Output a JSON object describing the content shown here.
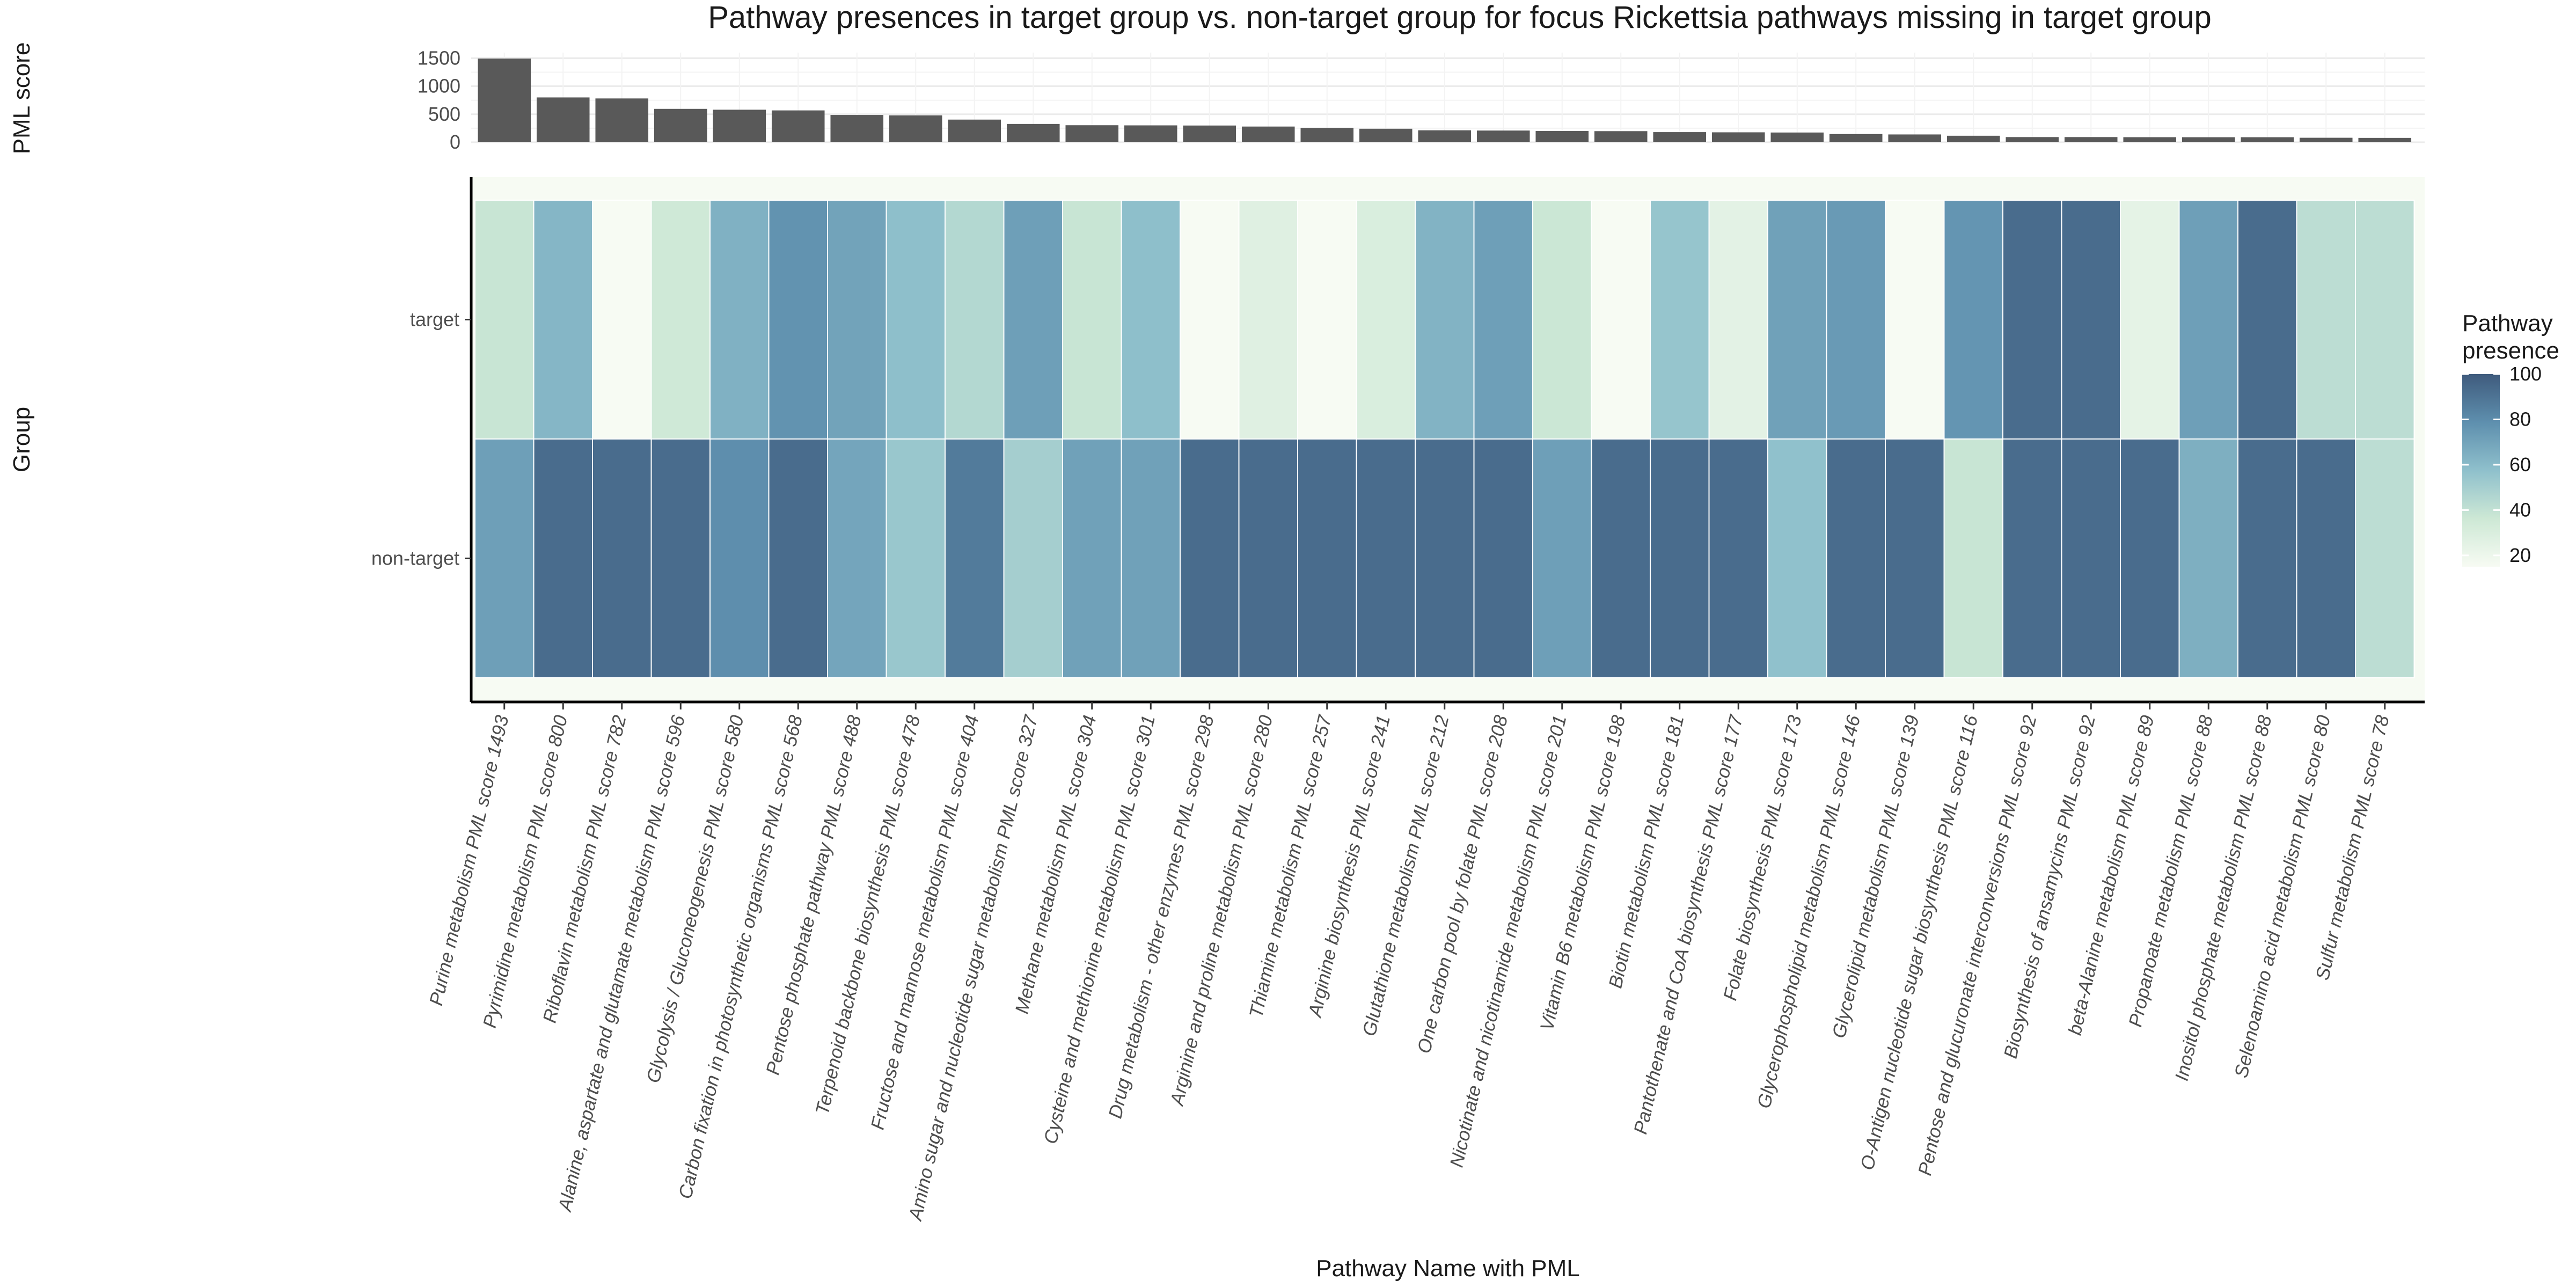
{
  "chart_data": [
    {
      "type": "bar",
      "ylabel": "PML score",
      "ylim": [
        0,
        1600
      ],
      "yticks": [
        0,
        500,
        1000,
        1500
      ],
      "categories": [
        "Purine metabolism PML score 1493",
        "Pyrimidine metabolism PML score 800",
        "Riboflavin metabolism PML score 782",
        "Alanine, aspartate and glutamate metabolism PML score 596",
        "Glycolysis / Gluconeogenesis PML score 580",
        "Carbon fixation in photosynthetic organisms PML score 568",
        "Pentose phosphate pathway PML score 488",
        "Terpenoid backbone biosynthesis PML score 478",
        "Fructose and mannose metabolism PML score 404",
        "Amino sugar and nucleotide sugar metabolism PML score 327",
        "Methane metabolism PML score 304",
        "Cysteine and methionine metabolism PML score 301",
        "Drug metabolism - other enzymes PML score 298",
        "Arginine and proline metabolism PML score 280",
        "Thiamine metabolism PML score 257",
        "Arginine biosynthesis PML score 241",
        "Glutathione metabolism PML score 212",
        "One carbon pool by folate PML score 208",
        "Nicotinate and nicotinamide metabolism PML score 201",
        "Vitamin B6 metabolism PML score 198",
        "Biotin metabolism PML score 181",
        "Pantothenate and CoA biosynthesis PML score 177",
        "Folate biosynthesis PML score 173",
        "Glycerophospholipid metabolism PML score 146",
        "Glycerolipid metabolism PML score 139",
        "O-Antigen nucleotide sugar biosynthesis PML score 116",
        "Pentose and glucuronate interconversions PML score 92",
        "Biosynthesis of ansamycins PML score 92",
        "beta-Alanine metabolism PML score 89",
        "Propanoate metabolism PML score 88",
        "Inositol phosphate metabolism PML score 88",
        "Selenoamino acid metabolism PML score 80",
        "Sulfur metabolism PML score 78"
      ],
      "values": [
        1493,
        800,
        782,
        596,
        580,
        568,
        488,
        478,
        404,
        327,
        304,
        301,
        298,
        280,
        257,
        241,
        212,
        208,
        201,
        198,
        181,
        177,
        173,
        146,
        139,
        116,
        92,
        92,
        89,
        88,
        88,
        80,
        78
      ],
      "bar_color": "#595959"
    },
    {
      "type": "heatmap",
      "title": "Pathway presences in target group vs. non-target group for focus Rickettsia pathways missing in target group",
      "xlabel": "Pathway Name with PML",
      "ylabel": "Group",
      "rows": [
        "target",
        "non-target"
      ],
      "legend": {
        "title_lines": [
          "Pathway",
          "presence"
        ],
        "range": [
          15,
          100
        ],
        "ticks": [
          20,
          40,
          60,
          80,
          100
        ],
        "position": "right",
        "colors": [
          "#f7fbf3",
          "#cde8d5",
          "#8fc0cc",
          "#5e8fae",
          "#3f5b7d"
        ]
      },
      "values": {
        "target": [
          38,
          62,
          15,
          35,
          64,
          77,
          70,
          58,
          45,
          72,
          38,
          58,
          15,
          27,
          15,
          30,
          63,
          72,
          37,
          15,
          55,
          25,
          71,
          74,
          15,
          76,
          93,
          93,
          24,
          72,
          93,
          42,
          42
        ],
        "non-target": [
          72,
          93,
          93,
          93,
          79,
          93,
          69,
          54,
          87,
          50,
          71,
          71,
          93,
          93,
          93,
          93,
          93,
          93,
          72,
          93,
          93,
          93,
          57,
          93,
          93,
          38,
          93,
          93,
          93,
          65,
          93,
          93,
          42
        ]
      }
    }
  ]
}
